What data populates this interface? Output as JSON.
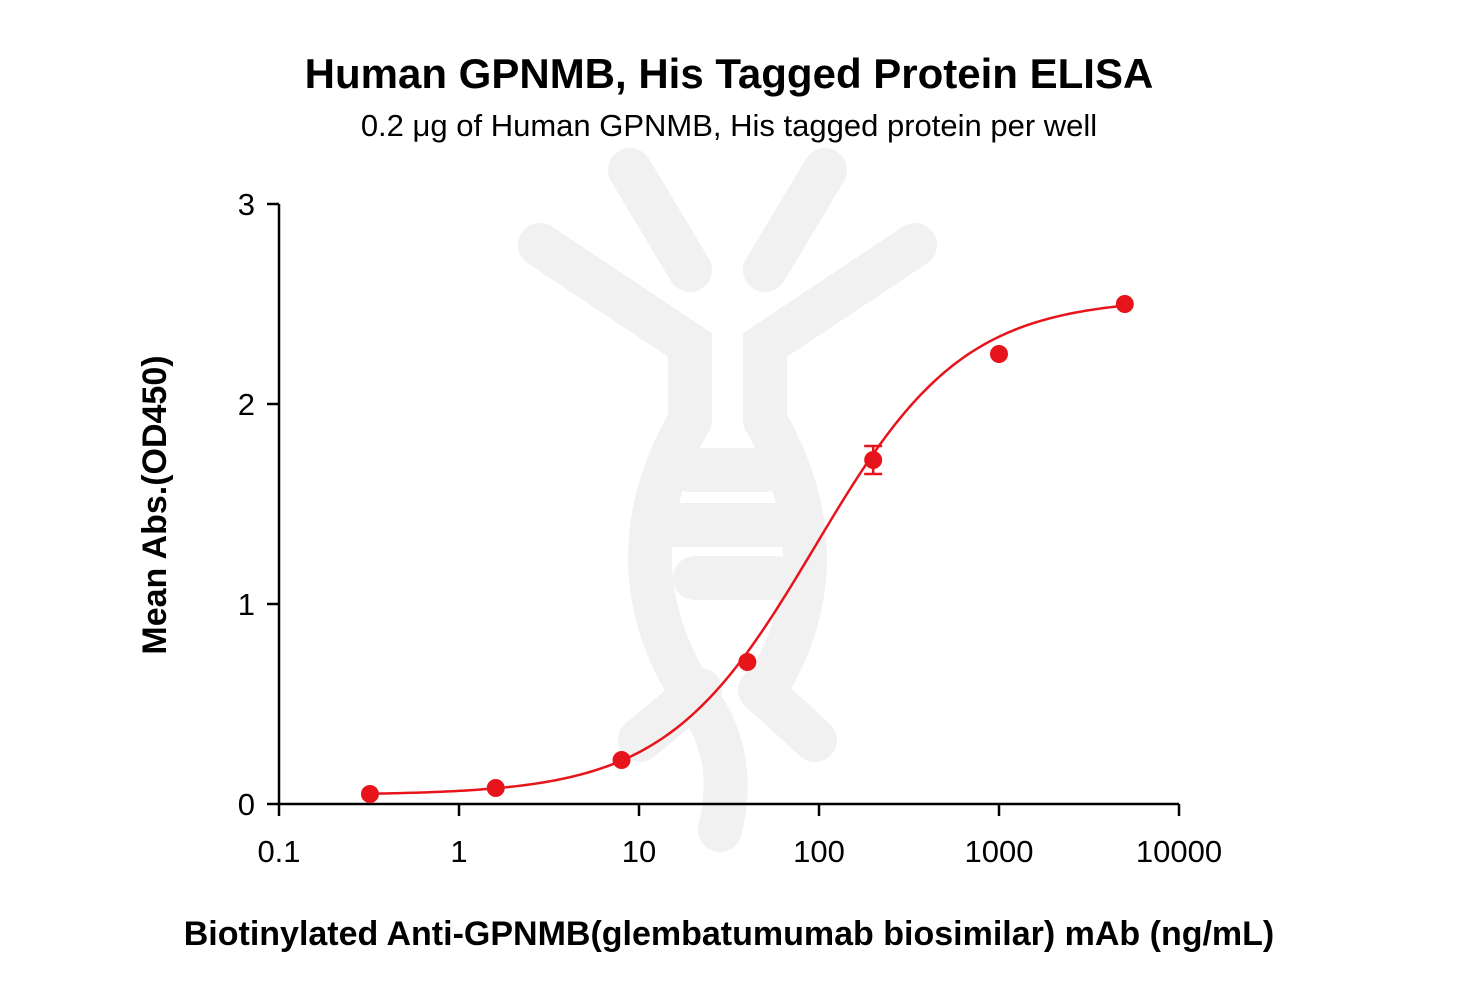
{
  "chart_data": {
    "type": "scatter",
    "title": "Human GPNMB, His Tagged Protein ELISA",
    "subtitle": "0.2 μg of Human GPNMB, His tagged protein per well",
    "xlabel": "Biotinylated Anti-GPNMB(glembatumumab biosimilar) mAb (ng/mL)",
    "ylabel": "Mean Abs.(OD450)",
    "x_scale": "log",
    "xlim": [
      0.1,
      10000
    ],
    "ylim": [
      0,
      3
    ],
    "x_ticks": [
      0.1,
      1,
      10,
      100,
      1000,
      10000
    ],
    "x_tick_labels": [
      "0.1",
      "1",
      "10",
      "100",
      "1000",
      "10000"
    ],
    "y_ticks": [
      0,
      1,
      2,
      3
    ],
    "y_tick_labels": [
      "0",
      "1",
      "2",
      "3"
    ],
    "grid": false,
    "color": "#e8141b",
    "series": [
      {
        "x": [
          0.32,
          1.6,
          8,
          40,
          200,
          1000,
          5000
        ],
        "y": [
          0.05,
          0.08,
          0.22,
          0.71,
          1.72,
          2.25,
          2.5
        ],
        "error": [
          0,
          0,
          0,
          0,
          0.07,
          0,
          0
        ],
        "fit": "4PL sigmoid"
      }
    ]
  }
}
